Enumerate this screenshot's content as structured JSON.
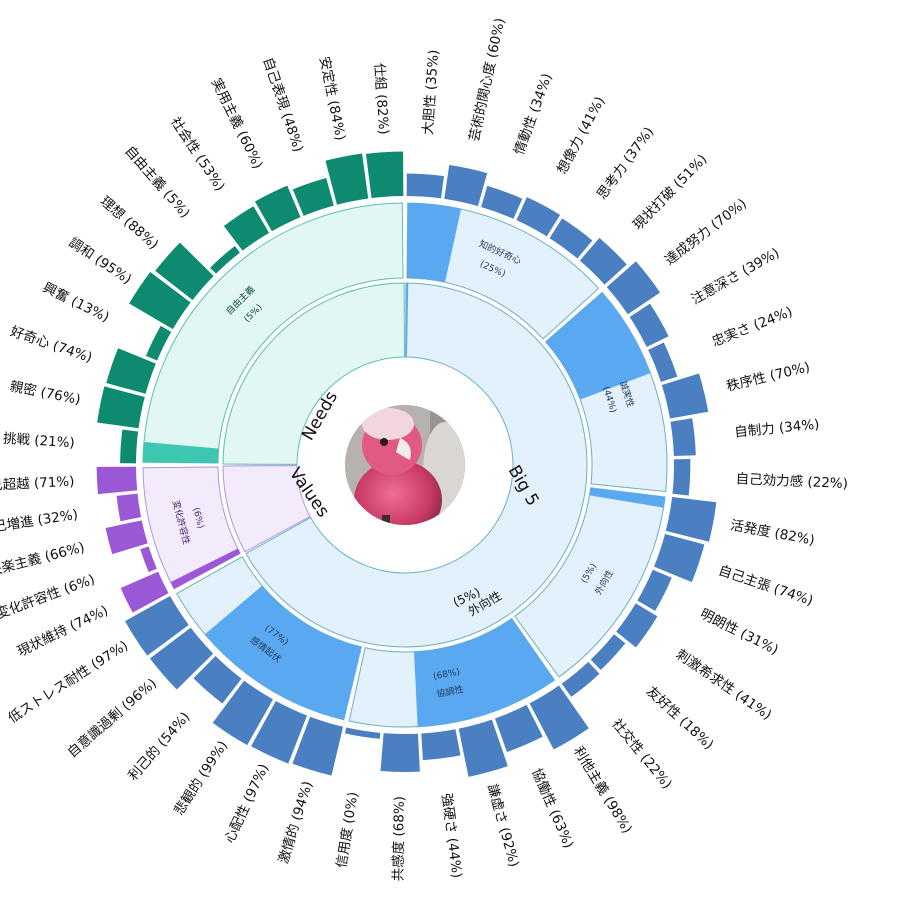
{
  "chart_data": {
    "type": "sunburst",
    "center_image": "pink-cockatoo-photo",
    "colors": {
      "big5_trait": "#4a7fc1",
      "big5_facet_fill": "#5aa8f0",
      "big5_facet_bg": "#e3f1fc",
      "big5_inner_bg": "#e8f3fc",
      "needs": "#0d8a70",
      "needs_fill": "#3cc7b0",
      "needs_bg": "#e2f7f3",
      "values": "#9a58d6",
      "values_bg": "#f3eafc",
      "stroke_blue": "#6ab0c8",
      "stroke_green": "#58c0b0",
      "stroke_purple": "#b890e0"
    },
    "rings": [
      {
        "key": "big5",
        "label": "Big 5",
        "start": 0,
        "end": 241.2
      },
      {
        "key": "values",
        "label": "Values",
        "start": 241.2,
        "end": 270.0
      },
      {
        "key": "needs",
        "label": "Needs",
        "start": 270.0,
        "end": 360.0
      }
    ],
    "big5_core": {
      "label": "外向性",
      "value": "(5%)",
      "fill": 0.05
    },
    "facets": [
      {
        "ring": "big5",
        "label": "知的好奇心",
        "value": "(25%)",
        "fill": 0.25
      },
      {
        "ring": "big5",
        "label": "誠実性",
        "value": "(44%)",
        "fill": 0.44
      },
      {
        "ring": "big5",
        "label": "外向性",
        "value": "(5%)",
        "fill": 0.05
      },
      {
        "ring": "big5",
        "label": "協調性",
        "value": "(68%)",
        "fill": 0.68
      },
      {
        "ring": "big5",
        "label": "感情起伏",
        "value": "(77%)",
        "fill": 0.77
      },
      {
        "ring": "values",
        "label": "変化許容性",
        "value": "(6%)",
        "fill": 0.06
      },
      {
        "ring": "needs",
        "label": "自由主義",
        "value": "(5%)",
        "fill": 0.05
      }
    ],
    "traits": [
      {
        "ring": "big5",
        "group": 0,
        "name": "大胆性",
        "value": 35
      },
      {
        "ring": "big5",
        "group": 0,
        "name": "芸術的関心度",
        "value": 60
      },
      {
        "ring": "big5",
        "group": 0,
        "name": "情動性",
        "value": 34
      },
      {
        "ring": "big5",
        "group": 0,
        "name": "想像力",
        "value": 41
      },
      {
        "ring": "big5",
        "group": 0,
        "name": "思考力",
        "value": 37
      },
      {
        "ring": "big5",
        "group": 0,
        "name": "現状打破",
        "value": 51
      },
      {
        "ring": "big5",
        "group": 1,
        "name": "達成努力",
        "value": 70
      },
      {
        "ring": "big5",
        "group": 1,
        "name": "注意深さ",
        "value": 39
      },
      {
        "ring": "big5",
        "group": 1,
        "name": "忠実さ",
        "value": 24
      },
      {
        "ring": "big5",
        "group": 1,
        "name": "秩序性",
        "value": 70
      },
      {
        "ring": "big5",
        "group": 1,
        "name": "自制力",
        "value": 34
      },
      {
        "ring": "big5",
        "group": 1,
        "name": "自己効力感",
        "value": 22
      },
      {
        "ring": "big5",
        "group": 2,
        "name": "活発度",
        "value": 82
      },
      {
        "ring": "big5",
        "group": 2,
        "name": "自己主張",
        "value": 74
      },
      {
        "ring": "big5",
        "group": 2,
        "name": "明朗性",
        "value": 31
      },
      {
        "ring": "big5",
        "group": 2,
        "name": "刺激希求性",
        "value": 41
      },
      {
        "ring": "big5",
        "group": 2,
        "name": "友好性",
        "value": 18
      },
      {
        "ring": "big5",
        "group": 2,
        "name": "社交性",
        "value": 22
      },
      {
        "ring": "big5",
        "group": 3,
        "name": "利他主義",
        "value": 98
      },
      {
        "ring": "big5",
        "group": 3,
        "name": "協働性",
        "value": 63
      },
      {
        "ring": "big5",
        "group": 3,
        "name": "謙虚さ",
        "value": 92
      },
      {
        "ring": "big5",
        "group": 3,
        "name": "強硬さ",
        "value": 44
      },
      {
        "ring": "big5",
        "group": 3,
        "name": "共感度",
        "value": 68
      },
      {
        "ring": "big5",
        "group": 3,
        "name": "信用度",
        "value": 0
      },
      {
        "ring": "big5",
        "group": 4,
        "name": "激情的",
        "value": 94
      },
      {
        "ring": "big5",
        "group": 4,
        "name": "心配性",
        "value": 97
      },
      {
        "ring": "big5",
        "group": 4,
        "name": "悲観的",
        "value": 99
      },
      {
        "ring": "big5",
        "group": 4,
        "name": "利己的",
        "value": 54
      },
      {
        "ring": "big5",
        "group": 4,
        "name": "自意識過剰",
        "value": 96
      },
      {
        "ring": "big5",
        "group": 4,
        "name": "低ストレス耐性",
        "value": 97
      },
      {
        "ring": "values",
        "group": 5,
        "name": "現状維持",
        "value": 74
      },
      {
        "ring": "values",
        "group": 5,
        "name": "変化許容性",
        "value": 6
      },
      {
        "ring": "values",
        "group": 5,
        "name": "快楽主義",
        "value": 66
      },
      {
        "ring": "values",
        "group": 5,
        "name": "自己増進",
        "value": 32
      },
      {
        "ring": "values",
        "group": 5,
        "name": "自己超越",
        "value": 71
      },
      {
        "ring": "needs",
        "group": 6,
        "name": "挑戦",
        "value": 21
      },
      {
        "ring": "needs",
        "group": 6,
        "name": "親密",
        "value": 76
      },
      {
        "ring": "needs",
        "group": 6,
        "name": "好奇心",
        "value": 74
      },
      {
        "ring": "needs",
        "group": 6,
        "name": "興奮",
        "value": 13
      },
      {
        "ring": "needs",
        "group": 6,
        "name": "調和",
        "value": 95
      },
      {
        "ring": "needs",
        "group": 6,
        "name": "理想",
        "value": 88
      },
      {
        "ring": "needs",
        "group": 6,
        "name": "自由主義",
        "value": 5
      },
      {
        "ring": "needs",
        "group": 6,
        "name": "社会性",
        "value": 53
      },
      {
        "ring": "needs",
        "group": 6,
        "name": "実用主義",
        "value": 60
      },
      {
        "ring": "needs",
        "group": 6,
        "name": "自己表現",
        "value": 48
      },
      {
        "ring": "needs",
        "group": 6,
        "name": "安定性",
        "value": 84
      },
      {
        "ring": "needs",
        "group": 6,
        "name": "仕組",
        "value": 82
      }
    ]
  }
}
